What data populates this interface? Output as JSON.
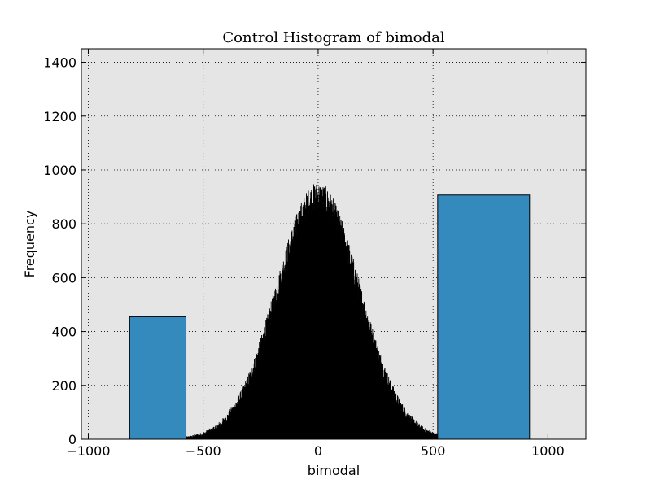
{
  "chart_data": {
    "type": "bar",
    "title": "Control Histogram of bimodal",
    "xlabel": "bimodal",
    "ylabel": "Frequency",
    "xlim": [
      -1030,
      1165
    ],
    "ylim": [
      0,
      1450
    ],
    "x_ticks": [
      -1000,
      -500,
      0,
      500,
      1000
    ],
    "x_tick_labels": [
      "−1000",
      "−500",
      "0",
      "500",
      "1000"
    ],
    "y_ticks": [
      0,
      200,
      400,
      600,
      800,
      1000,
      1200,
      1400
    ],
    "y_tick_labels": [
      "0",
      "200",
      "400",
      "600",
      "800",
      "1000",
      "1200",
      "1400"
    ],
    "grid": true,
    "background_color": "#e5e5e5",
    "series": [
      {
        "color": "#348abd",
        "bars": [
          {
            "x0": -820,
            "x1": -575,
            "value": 455
          },
          {
            "x0": 520,
            "x1": 920,
            "value": 907
          }
        ]
      },
      {
        "color": "#000000",
        "distribution": {
          "center": 0,
          "sd": 180,
          "peak": 900,
          "x_min": -575,
          "x_max": 520,
          "n_bins": 1000
        }
      }
    ]
  }
}
